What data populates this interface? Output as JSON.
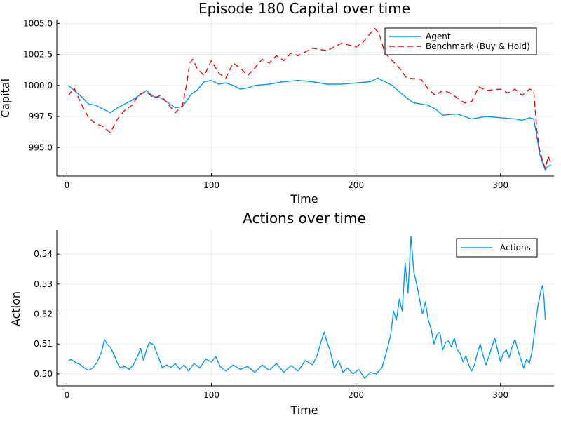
{
  "chart_data": [
    {
      "type": "line",
      "title": "Episode 180 Capital over time",
      "xlabel": "Time",
      "ylabel": "Capital",
      "xlim": [
        -7,
        337
      ],
      "ylim": [
        992.7,
        1005.3
      ],
      "xticks": [
        0,
        100,
        200,
        300
      ],
      "yticks": [
        995.0,
        997.5,
        1000.0,
        1002.5,
        1005.0
      ],
      "ytick_labels": [
        "995.0",
        "997.5",
        "1000.0",
        "1002.5",
        "1005.0"
      ],
      "grid": true,
      "legend_position": "top-right",
      "colors": {
        "Agent": "#009AFA",
        "Benchmark (Buy & Hold)": "#FF0000"
      },
      "series": [
        {
          "name": "Agent",
          "style": "solid",
          "points": [
            [
              1,
              1000.0
            ],
            [
              5,
              999.6
            ],
            [
              10,
              999.1
            ],
            [
              15,
              998.5
            ],
            [
              20,
              998.4
            ],
            [
              25,
              998.1
            ],
            [
              30,
              997.8
            ],
            [
              35,
              998.2
            ],
            [
              40,
              998.5
            ],
            [
              45,
              998.8
            ],
            [
              50,
              999.2
            ],
            [
              55,
              999.6
            ],
            [
              60,
              999.1
            ],
            [
              65,
              999.0
            ],
            [
              70,
              998.6
            ],
            [
              75,
              998.2
            ],
            [
              80,
              998.3
            ],
            [
              83,
              998.8
            ],
            [
              86,
              999.3
            ],
            [
              90,
              999.6
            ],
            [
              95,
              1000.3
            ],
            [
              100,
              1000.4
            ],
            [
              105,
              1000.1
            ],
            [
              110,
              1000.2
            ],
            [
              115,
              1000.0
            ],
            [
              120,
              999.7
            ],
            [
              125,
              999.8
            ],
            [
              130,
              1000.0
            ],
            [
              140,
              1000.1
            ],
            [
              150,
              1000.3
            ],
            [
              160,
              1000.4
            ],
            [
              170,
              1000.3
            ],
            [
              180,
              1000.1
            ],
            [
              190,
              1000.1
            ],
            [
              200,
              1000.2
            ],
            [
              210,
              1000.3
            ],
            [
              215,
              1000.6
            ],
            [
              220,
              1000.3
            ],
            [
              225,
              1000.0
            ],
            [
              230,
              999.5
            ],
            [
              235,
              999.0
            ],
            [
              240,
              998.6
            ],
            [
              250,
              998.4
            ],
            [
              255,
              998.1
            ],
            [
              260,
              997.6
            ],
            [
              270,
              997.7
            ],
            [
              280,
              997.3
            ],
            [
              290,
              997.5
            ],
            [
              300,
              997.4
            ],
            [
              310,
              997.3
            ],
            [
              315,
              997.2
            ],
            [
              320,
              997.4
            ],
            [
              323,
              997.3
            ],
            [
              325,
              996.0
            ],
            [
              327,
              994.5
            ],
            [
              329,
              993.8
            ],
            [
              331,
              993.2
            ],
            [
              333,
              993.5
            ],
            [
              335,
              993.6
            ]
          ]
        },
        {
          "name": "Benchmark (Buy & Hold)",
          "style": "dashed",
          "points": [
            [
              1,
              999.2
            ],
            [
              5,
              999.8
            ],
            [
              10,
              998.5
            ],
            [
              15,
              997.4
            ],
            [
              20,
              996.9
            ],
            [
              25,
              996.7
            ],
            [
              30,
              996.2
            ],
            [
              35,
              997.3
            ],
            [
              40,
              998.0
            ],
            [
              45,
              998.4
            ],
            [
              50,
              999.3
            ],
            [
              55,
              999.5
            ],
            [
              60,
              999.0
            ],
            [
              65,
              999.2
            ],
            [
              70,
              998.5
            ],
            [
              75,
              997.8
            ],
            [
              80,
              998.4
            ],
            [
              83,
              1000.2
            ],
            [
              85,
              1001.8
            ],
            [
              87,
              1002.1
            ],
            [
              90,
              1001.4
            ],
            [
              95,
              1000.8
            ],
            [
              100,
              1002.0
            ],
            [
              105,
              1001.0
            ],
            [
              110,
              1000.6
            ],
            [
              115,
              1001.8
            ],
            [
              120,
              1001.4
            ],
            [
              125,
              1000.8
            ],
            [
              130,
              1001.4
            ],
            [
              135,
              1002.1
            ],
            [
              140,
              1001.8
            ],
            [
              145,
              1002.4
            ],
            [
              150,
              1002.0
            ],
            [
              155,
              1002.6
            ],
            [
              160,
              1002.4
            ],
            [
              170,
              1003.0
            ],
            [
              180,
              1002.8
            ],
            [
              190,
              1003.4
            ],
            [
              200,
              1003.1
            ],
            [
              205,
              1003.5
            ],
            [
              210,
              1004.2
            ],
            [
              213,
              1004.6
            ],
            [
              216,
              1004.2
            ],
            [
              220,
              1002.6
            ],
            [
              225,
              1002.0
            ],
            [
              230,
              1001.4
            ],
            [
              235,
              1000.6
            ],
            [
              245,
              1000.5
            ],
            [
              250,
              999.7
            ],
            [
              255,
              999.2
            ],
            [
              260,
              999.6
            ],
            [
              265,
              999.4
            ],
            [
              270,
              999.0
            ],
            [
              275,
              998.6
            ],
            [
              280,
              998.7
            ],
            [
              285,
              999.9
            ],
            [
              290,
              999.6
            ],
            [
              300,
              999.7
            ],
            [
              305,
              999.4
            ],
            [
              310,
              999.7
            ],
            [
              315,
              999.2
            ],
            [
              320,
              999.7
            ],
            [
              323,
              999.6
            ],
            [
              325,
              996.5
            ],
            [
              327,
              994.8
            ],
            [
              329,
              994.0
            ],
            [
              331,
              993.3
            ],
            [
              333,
              994.3
            ],
            [
              335,
              993.7
            ]
          ]
        }
      ]
    },
    {
      "type": "line",
      "title": "Actions over time",
      "xlabel": "Time",
      "ylabel": "Action",
      "xlim": [
        -7,
        337
      ],
      "ylim": [
        0.496,
        0.548
      ],
      "xticks": [
        0,
        100,
        200,
        300
      ],
      "yticks": [
        0.5,
        0.51,
        0.52,
        0.53,
        0.54
      ],
      "ytick_labels": [
        "0.50",
        "0.51",
        "0.52",
        "0.53",
        "0.54"
      ],
      "grid": true,
      "legend_position": "top-right",
      "colors": {
        "Actions": "#009AFA"
      },
      "series": [
        {
          "name": "Actions",
          "style": "solid",
          "points": [
            [
              1,
              0.5045
            ],
            [
              3,
              0.5048
            ],
            [
              6,
              0.5038
            ],
            [
              9,
              0.5032
            ],
            [
              12,
              0.502
            ],
            [
              15,
              0.5012
            ],
            [
              18,
              0.502
            ],
            [
              21,
              0.504
            ],
            [
              24,
              0.5075
            ],
            [
              26,
              0.5115
            ],
            [
              28,
              0.5098
            ],
            [
              30,
              0.509
            ],
            [
              33,
              0.506
            ],
            [
              35,
              0.5035
            ],
            [
              37,
              0.502
            ],
            [
              40,
              0.5025
            ],
            [
              43,
              0.5015
            ],
            [
              46,
              0.503
            ],
            [
              49,
              0.506
            ],
            [
              51,
              0.5085
            ],
            [
              53,
              0.5045
            ],
            [
              55,
              0.508
            ],
            [
              57,
              0.5105
            ],
            [
              60,
              0.5098
            ],
            [
              63,
              0.506
            ],
            [
              66,
              0.502
            ],
            [
              69,
              0.503
            ],
            [
              72,
              0.5022
            ],
            [
              75,
              0.5035
            ],
            [
              78,
              0.5015
            ],
            [
              81,
              0.503
            ],
            [
              84,
              0.501
            ],
            [
              88,
              0.5035
            ],
            [
              92,
              0.502
            ],
            [
              96,
              0.505
            ],
            [
              100,
              0.504
            ],
            [
              103,
              0.5058
            ],
            [
              106,
              0.5025
            ],
            [
              110,
              0.501
            ],
            [
              115,
              0.503
            ],
            [
              120,
              0.5015
            ],
            [
              125,
              0.5025
            ],
            [
              130,
              0.5005
            ],
            [
              135,
              0.503
            ],
            [
              140,
              0.5012
            ],
            [
              145,
              0.5035
            ],
            [
              150,
              0.5005
            ],
            [
              155,
              0.5028
            ],
            [
              160,
              0.501
            ],
            [
              165,
              0.5045
            ],
            [
              170,
              0.503
            ],
            [
              173,
              0.506
            ],
            [
              176,
              0.511
            ],
            [
              178,
              0.514
            ],
            [
              180,
              0.5105
            ],
            [
              182,
              0.508
            ],
            [
              185,
              0.502
            ],
            [
              188,
              0.5045
            ],
            [
              191,
              0.5005
            ],
            [
              194,
              0.502
            ],
            [
              198,
              0.5
            ],
            [
              202,
              0.5015
            ],
            [
              206,
              0.4985
            ],
            [
              210,
              0.5005
            ],
            [
              214,
              0.5
            ],
            [
              218,
              0.502
            ],
            [
              222,
              0.509
            ],
            [
              224,
              0.513
            ],
            [
              226,
              0.521
            ],
            [
              228,
              0.518
            ],
            [
              230,
              0.525
            ],
            [
              232,
              0.521
            ],
            [
              234,
              0.537
            ],
            [
              236,
              0.527
            ],
            [
              238,
              0.546
            ],
            [
              240,
              0.534
            ],
            [
              242,
              0.53
            ],
            [
              244,
              0.525
            ],
            [
              246,
              0.52
            ],
            [
              248,
              0.524
            ],
            [
              250,
              0.518
            ],
            [
              252,
              0.515
            ],
            [
              254,
              0.51
            ],
            [
              256,
              0.513
            ],
            [
              258,
              0.514
            ],
            [
              260,
              0.508
            ],
            [
              262,
              0.5105
            ],
            [
              264,
              0.511
            ],
            [
              266,
              0.509
            ],
            [
              268,
              0.512
            ],
            [
              270,
              0.508
            ],
            [
              272,
              0.507
            ],
            [
              274,
              0.504
            ],
            [
              276,
              0.506
            ],
            [
              278,
              0.503
            ],
            [
              280,
              0.501
            ],
            [
              282,
              0.503
            ],
            [
              284,
              0.507
            ],
            [
              286,
              0.51
            ],
            [
              288,
              0.506
            ],
            [
              290,
              0.503
            ],
            [
              292,
              0.506
            ],
            [
              294,
              0.509
            ],
            [
              296,
              0.512
            ],
            [
              298,
              0.508
            ],
            [
              300,
              0.504
            ],
            [
              302,
              0.507
            ],
            [
              304,
              0.508
            ],
            [
              306,
              0.5055
            ],
            [
              308,
              0.509
            ],
            [
              310,
              0.5115
            ],
            [
              312,
              0.508
            ],
            [
              314,
              0.505
            ],
            [
              316,
              0.502
            ],
            [
              318,
              0.505
            ],
            [
              320,
              0.5035
            ],
            [
              322,
              0.508
            ],
            [
              324,
              0.516
            ],
            [
              326,
              0.523
            ],
            [
              328,
              0.528
            ],
            [
              329,
              0.5295
            ],
            [
              330,
              0.526
            ],
            [
              331,
              0.518
            ]
          ]
        }
      ]
    }
  ]
}
